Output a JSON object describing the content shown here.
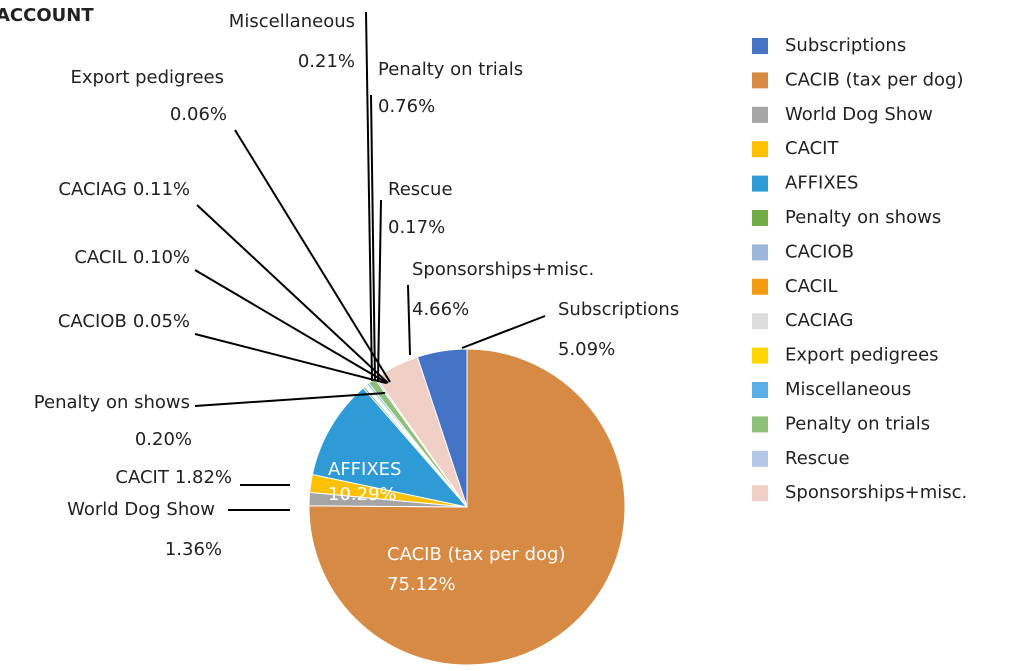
{
  "chart_data": {
    "type": "pie",
    "title": "ACCOUNT",
    "categories": [
      "Subscriptions",
      "CACIB (tax per dog)",
      "World Dog Show",
      "CACIT",
      "AFFIXES",
      "Penalty on shows",
      "CACIOB",
      "CACIL",
      "CACIAG",
      "Export pedigrees",
      "Miscellaneous",
      "Penalty on trials",
      "Rescue",
      "Sponsorships+misc."
    ],
    "values": [
      5.09,
      75.12,
      1.36,
      1.82,
      10.29,
      0.2,
      0.05,
      0.1,
      0.11,
      0.06,
      0.21,
      0.76,
      0.17,
      4.66
    ],
    "value_labels": [
      "5.09%",
      "75.12%",
      "1.36%",
      "1.82%",
      "10.29%",
      "0.20%",
      "0.05%",
      "0.10%",
      "0.11%",
      "0.06%",
      "0.21%",
      "0.76%",
      "0.17%",
      "4.66%"
    ],
    "colors": [
      "#4472c4",
      "#d68a44",
      "#a5a5a5",
      "#ffc000",
      "#2e9bd6",
      "#70ad47",
      "#9db6dc",
      "#f39c12",
      "#dcdcdc",
      "#ffd700",
      "#5aaee6",
      "#8fc07a",
      "#b4c7e7",
      "#f0cfc6"
    ],
    "legend": "right"
  }
}
